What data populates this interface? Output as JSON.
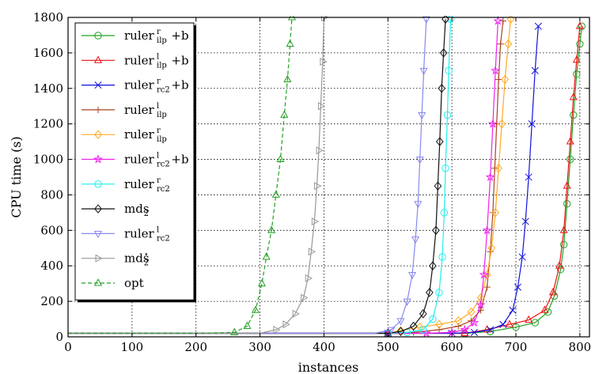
{
  "chart_data": {
    "type": "line",
    "title": "",
    "xlabel": "instances",
    "ylabel": "CPU time (s)",
    "xlim": [
      0,
      815
    ],
    "ylim": [
      0,
      1800
    ],
    "xticks": [
      0,
      100,
      200,
      300,
      400,
      500,
      600,
      700,
      800
    ],
    "yticks": [
      0,
      200,
      400,
      600,
      800,
      1000,
      1200,
      1400,
      1600,
      1800
    ],
    "grid": true,
    "legend_position": "top-left",
    "series": [
      {
        "base": "ruler",
        "sup": "r",
        "sub": "ilp",
        "suffix": "+b",
        "color": "#22a022",
        "marker": "circle",
        "dashed": false,
        "points": [
          [
            0,
            20
          ],
          [
            100,
            20
          ],
          [
            200,
            20
          ],
          [
            500,
            20
          ],
          [
            620,
            20
          ],
          [
            660,
            30
          ],
          [
            700,
            55
          ],
          [
            730,
            80
          ],
          [
            750,
            140
          ],
          [
            760,
            230
          ],
          [
            770,
            380
          ],
          [
            775,
            520
          ],
          [
            780,
            750
          ],
          [
            785,
            1000
          ],
          [
            790,
            1250
          ],
          [
            795,
            1480
          ],
          [
            800,
            1650
          ],
          [
            803,
            1750
          ]
        ]
      },
      {
        "base": "ruler",
        "sup": "l",
        "sub": "ilp",
        "suffix": "+b",
        "color": "#ee1111",
        "marker": "triangle-up",
        "dashed": false,
        "points": [
          [
            0,
            20
          ],
          [
            100,
            20
          ],
          [
            200,
            20
          ],
          [
            500,
            20
          ],
          [
            620,
            20
          ],
          [
            655,
            40
          ],
          [
            690,
            70
          ],
          [
            720,
            95
          ],
          [
            745,
            150
          ],
          [
            758,
            250
          ],
          [
            768,
            400
          ],
          [
            775,
            600
          ],
          [
            780,
            850
          ],
          [
            785,
            1100
          ],
          [
            790,
            1350
          ],
          [
            795,
            1560
          ],
          [
            800,
            1750
          ]
        ]
      },
      {
        "base": "ruler",
        "sup": "r",
        "sub": "rc2",
        "suffix": "+b",
        "color": "#1111dd",
        "marker": "x",
        "dashed": false,
        "points": [
          [
            0,
            20
          ],
          [
            100,
            20
          ],
          [
            200,
            20
          ],
          [
            500,
            20
          ],
          [
            600,
            20
          ],
          [
            635,
            25
          ],
          [
            660,
            40
          ],
          [
            680,
            70
          ],
          [
            695,
            150
          ],
          [
            703,
            280
          ],
          [
            710,
            450
          ],
          [
            715,
            650
          ],
          [
            720,
            900
          ],
          [
            725,
            1200
          ],
          [
            730,
            1500
          ],
          [
            735,
            1750
          ]
        ]
      },
      {
        "base": "ruler",
        "sup": "l",
        "sub": "ilp",
        "suffix": "",
        "color": "#aa4422",
        "marker": "plus",
        "dashed": false,
        "points": [
          [
            0,
            20
          ],
          [
            300,
            20
          ],
          [
            500,
            20
          ],
          [
            540,
            25
          ],
          [
            580,
            40
          ],
          [
            610,
            60
          ],
          [
            630,
            90
          ],
          [
            645,
            150
          ],
          [
            655,
            280
          ],
          [
            660,
            480
          ],
          [
            664,
            700
          ],
          [
            667,
            950
          ],
          [
            670,
            1200
          ],
          [
            673,
            1450
          ],
          [
            676,
            1650
          ],
          [
            680,
            1780
          ]
        ]
      },
      {
        "base": "ruler",
        "sup": "r",
        "sub": "ilp",
        "suffix": "",
        "color": "#ffaa22",
        "marker": "diamond",
        "dashed": false,
        "points": [
          [
            0,
            20
          ],
          [
            300,
            20
          ],
          [
            500,
            20
          ],
          [
            520,
            35
          ],
          [
            550,
            55
          ],
          [
            580,
            70
          ],
          [
            610,
            90
          ],
          [
            630,
            140
          ],
          [
            645,
            220
          ],
          [
            655,
            350
          ],
          [
            662,
            500
          ],
          [
            668,
            700
          ],
          [
            673,
            950
          ],
          [
            678,
            1200
          ],
          [
            683,
            1450
          ],
          [
            688,
            1650
          ],
          [
            692,
            1790
          ]
        ]
      },
      {
        "base": "ruler",
        "sup": "l",
        "sub": "rc2",
        "suffix": "+b",
        "color": "#ee22ee",
        "marker": "star",
        "dashed": false,
        "points": [
          [
            0,
            20
          ],
          [
            300,
            20
          ],
          [
            500,
            20
          ],
          [
            560,
            20
          ],
          [
            600,
            25
          ],
          [
            620,
            40
          ],
          [
            635,
            80
          ],
          [
            645,
            180
          ],
          [
            650,
            350
          ],
          [
            655,
            600
          ],
          [
            660,
            900
          ],
          [
            664,
            1200
          ],
          [
            668,
            1500
          ],
          [
            672,
            1780
          ]
        ]
      },
      {
        "base": "ruler",
        "sup": "r",
        "sub": "rc2",
        "suffix": "",
        "color": "#22eeee",
        "marker": "circle",
        "dashed": false,
        "points": [
          [
            0,
            20
          ],
          [
            300,
            20
          ],
          [
            500,
            20
          ],
          [
            530,
            25
          ],
          [
            555,
            40
          ],
          [
            570,
            100
          ],
          [
            580,
            250
          ],
          [
            585,
            450
          ],
          [
            588,
            700
          ],
          [
            590,
            950
          ],
          [
            593,
            1250
          ],
          [
            595,
            1500
          ],
          [
            598,
            1790
          ]
        ]
      },
      {
        "base": "mds",
        "sup": "",
        "sub": "2",
        "suffix": "",
        "color": "#111111",
        "marker": "diamond",
        "dashed": false,
        "points": [
          [
            0,
            20
          ],
          [
            300,
            20
          ],
          [
            500,
            20
          ],
          [
            520,
            30
          ],
          [
            540,
            60
          ],
          [
            555,
            130
          ],
          [
            565,
            250
          ],
          [
            570,
            400
          ],
          [
            575,
            600
          ],
          [
            578,
            850
          ],
          [
            581,
            1100
          ],
          [
            584,
            1400
          ],
          [
            587,
            1600
          ],
          [
            590,
            1790
          ]
        ]
      },
      {
        "base": "ruler",
        "sup": "l",
        "sub": "rc2",
        "suffix": "",
        "color": "#8888ee",
        "marker": "triangle-down",
        "dashed": false,
        "points": [
          [
            0,
            20
          ],
          [
            300,
            20
          ],
          [
            480,
            20
          ],
          [
            505,
            40
          ],
          [
            520,
            90
          ],
          [
            530,
            200
          ],
          [
            538,
            350
          ],
          [
            543,
            550
          ],
          [
            547,
            750
          ],
          [
            550,
            1000
          ],
          [
            553,
            1250
          ],
          [
            556,
            1500
          ],
          [
            560,
            1790
          ]
        ]
      },
      {
        "base": "mds",
        "sup": "⋆",
        "sub": "2",
        "suffix": "",
        "color": "#999999",
        "marker": "triangle-right",
        "dashed": false,
        "points": [
          [
            0,
            20
          ],
          [
            200,
            20
          ],
          [
            300,
            20
          ],
          [
            325,
            40
          ],
          [
            340,
            70
          ],
          [
            355,
            130
          ],
          [
            368,
            220
          ],
          [
            375,
            330
          ],
          [
            380,
            480
          ],
          [
            385,
            650
          ],
          [
            389,
            850
          ],
          [
            392,
            1050
          ],
          [
            395,
            1300
          ],
          [
            398,
            1550
          ],
          [
            400,
            1800
          ]
        ]
      },
      {
        "base": "opt",
        "sup": "",
        "sub": "",
        "suffix": "",
        "color": "#22a022",
        "marker": "triangle-up",
        "dashed": true,
        "points": [
          [
            0,
            20
          ],
          [
            200,
            20
          ],
          [
            260,
            25
          ],
          [
            280,
            60
          ],
          [
            293,
            150
          ],
          [
            303,
            300
          ],
          [
            310,
            450
          ],
          [
            318,
            600
          ],
          [
            325,
            800
          ],
          [
            332,
            1000
          ],
          [
            338,
            1250
          ],
          [
            343,
            1450
          ],
          [
            347,
            1650
          ],
          [
            350,
            1800
          ]
        ]
      }
    ]
  }
}
